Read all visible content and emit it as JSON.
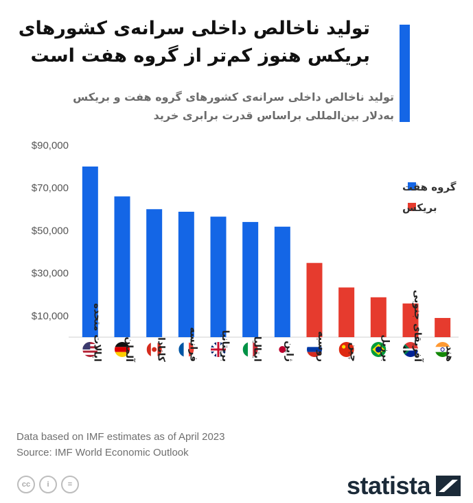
{
  "header": {
    "title_line1": "تولید ناخالص داخلی  سرانه‌ی کشورهای",
    "title_line2": "بریکس هنوز کم‌تر از گروه هفت است",
    "subtitle_line1": "تولید ناخالص داخلی سرانه‌ی کشورهای گروه هفت و بریکس",
    "subtitle_line2": "به‌دلار بین‌المللی براساس قدرت برابری خرید"
  },
  "colors": {
    "g7": "#1466e6",
    "brics": "#e63b2e",
    "accent": "#1466e6",
    "brand": "#1b2a38"
  },
  "chart_data": {
    "type": "bar",
    "title": "",
    "xlabel": "",
    "ylabel": "",
    "ylim": [
      0,
      92000
    ],
    "yticks": [
      10000,
      30000,
      50000,
      70000,
      90000
    ],
    "ytick_labels": [
      "$10,000",
      "$30,000",
      "$50,000",
      "$70,000",
      "$90,000"
    ],
    "grid": false,
    "legend_position": "top-right",
    "categories": [
      "ایالات متحده",
      "آلمان",
      "کانادا",
      "فرانسه",
      "بریتانیا",
      "ایتالیا",
      "ژاپن",
      "روسیه",
      "چین",
      "برزیل",
      "آفریقای جنوبی",
      "هند"
    ],
    "values": [
      80000,
      66000,
      60000,
      58800,
      56500,
      54000,
      51800,
      34800,
      23300,
      18700,
      15800,
      9000
    ],
    "groups": [
      "g7",
      "g7",
      "g7",
      "g7",
      "g7",
      "g7",
      "g7",
      "brics",
      "brics",
      "brics",
      "brics",
      "brics"
    ],
    "flags": [
      "flag-usa-icon",
      "flag-germany-icon",
      "flag-canada-icon",
      "flag-france-icon",
      "flag-uk-icon",
      "flag-italy-icon",
      "flag-japan-icon",
      "flag-russia-icon",
      "flag-china-icon",
      "flag-brazil-icon",
      "flag-south-africa-icon",
      "flag-india-icon"
    ],
    "legend": [
      {
        "key": "g7",
        "label": "گروه هفت"
      },
      {
        "key": "brics",
        "label": "بریکس"
      }
    ]
  },
  "footer": {
    "note": "Data based on IMF estimates as of April 2023",
    "source": "Source: IMF World Economic Outlook",
    "brand": "statista",
    "license_icons": [
      "cc",
      "i",
      "="
    ]
  }
}
